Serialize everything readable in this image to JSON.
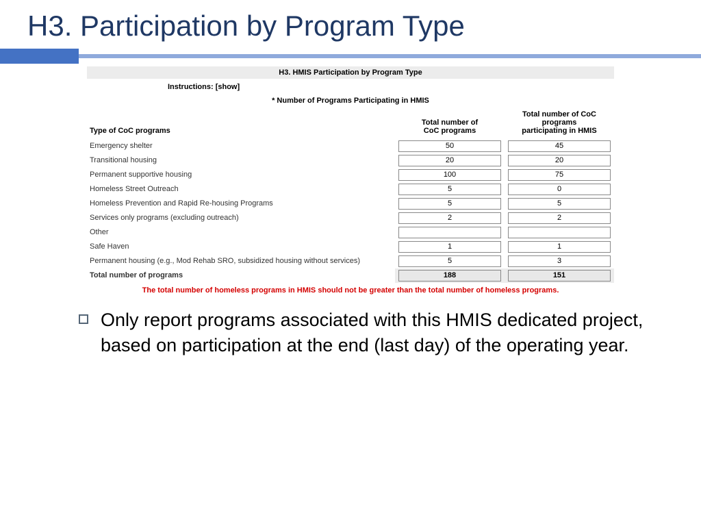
{
  "title": "H3.  Participation by Program Type",
  "form": {
    "header": "H3. HMIS Participation by Program Type",
    "instructions_label": "Instructions:",
    "instructions_link": "[show]",
    "subhead": "* Number of Programs Participating in HMIS",
    "col1": "Type of CoC programs",
    "col2_line1": "Total number of",
    "col2_line2": "CoC programs",
    "col3_line1": "Total number of CoC programs",
    "col3_line2": "participating in HMIS",
    "rows": [
      {
        "label": "Emergency shelter",
        "total": "50",
        "hmis": "45"
      },
      {
        "label": "Transitional housing",
        "total": "20",
        "hmis": "20"
      },
      {
        "label": "Permanent supportive housing",
        "total": "100",
        "hmis": "75"
      },
      {
        "label": "Homeless Street Outreach",
        "total": "5",
        "hmis": "0"
      },
      {
        "label": "Homeless Prevention and Rapid Re-housing Programs",
        "total": "5",
        "hmis": "5"
      },
      {
        "label": "Services only programs (excluding outreach)",
        "total": "2",
        "hmis": "2"
      },
      {
        "label": "Other",
        "total": "",
        "hmis": ""
      },
      {
        "label": "Safe Haven",
        "total": "1",
        "hmis": "1"
      },
      {
        "label": "Permanent housing (e.g., Mod Rehab SRO, subsidized housing without services)",
        "total": "5",
        "hmis": "3"
      }
    ],
    "total_label": "Total number of programs",
    "total_col2": "188",
    "total_col3": "151",
    "warning": "The total number of homeless programs in HMIS should not be greater than the total number of homeless programs."
  },
  "bullet": "Only report programs associated with this HMIS dedicated project, based on participation at the end (last day) of the operating year.",
  "colors": {
    "title": "#1f3864",
    "divider_block": "#4472c4",
    "divider_line": "#8faadc",
    "warning": "#d40000",
    "form_header_bg": "#ececec",
    "total_bg": "#e8e8e8"
  }
}
